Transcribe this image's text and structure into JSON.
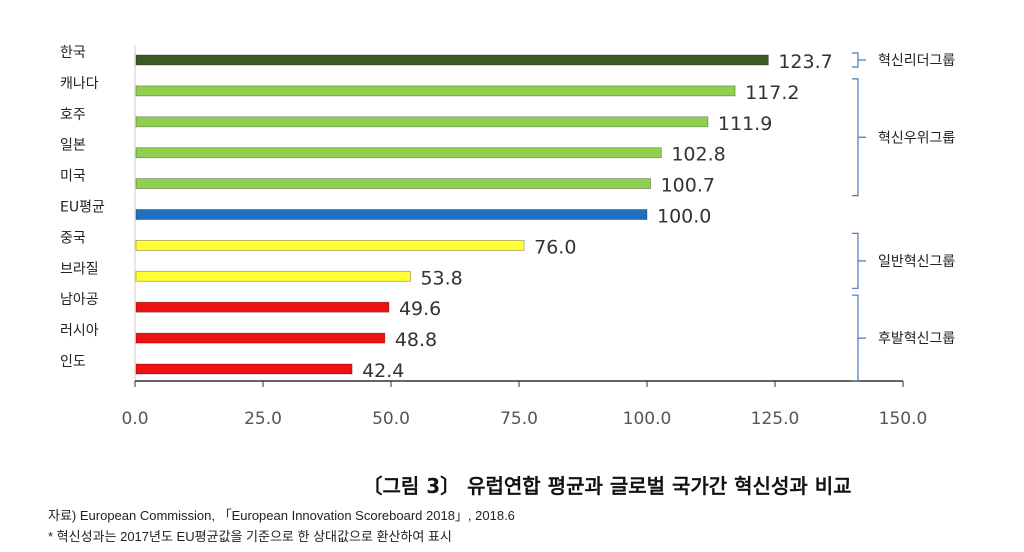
{
  "chart_data": {
    "type": "bar",
    "orientation": "horizontal",
    "categories": [
      "한국",
      "캐나다",
      "호주",
      "일본",
      "미국",
      "EU평균",
      "중국",
      "브라질",
      "남아공",
      "러시아",
      "인도"
    ],
    "values": [
      123.7,
      117.2,
      111.9,
      102.8,
      100.7,
      100.0,
      76.0,
      53.8,
      49.6,
      48.8,
      42.4
    ],
    "value_labels": [
      "123.7",
      "117.2",
      "111.9",
      "102.8",
      "100.7",
      "100.0",
      "76.0",
      "53.8",
      "49.6",
      "48.8",
      "42.4"
    ],
    "colors": [
      "#3c5a22",
      "#8fd14f",
      "#8fd14f",
      "#8fd14f",
      "#8fd14f",
      "#1f6fc0",
      "#ffff33",
      "#ffff33",
      "#ee1111",
      "#ee1111",
      "#ee1111"
    ],
    "xlim": [
      0,
      150
    ],
    "xticks": [
      "0.0",
      "25.0",
      "50.0",
      "75.0",
      "100.0",
      "125.0",
      "150.0"
    ],
    "groups": [
      {
        "label": "혁신리더그룹",
        "from": 0,
        "to": 0
      },
      {
        "label": "혁신우위그룹",
        "from": 1,
        "to": 4
      },
      {
        "label": "일반혁신그룹",
        "from": 6,
        "to": 7
      },
      {
        "label": "후발혁신그룹",
        "from": 8,
        "to": 10
      }
    ],
    "title": "〔그림 3〕 유럽연합 평균과 글로벌 국가간 혁신성과 비교",
    "grid": false
  },
  "source": "자료) European Commission, 「European Innovation Scoreboard 2018」, 2018.6",
  "note": "* 혁신성과는 2017년도 EU평균값을 기준으로 한 상대값으로 환산하여 표시"
}
